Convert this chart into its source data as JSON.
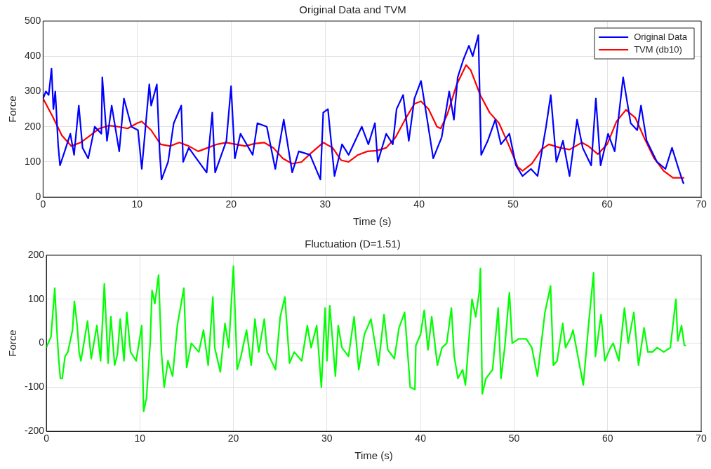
{
  "chart_data": [
    {
      "type": "line",
      "title": "Original Data and TVM",
      "xlabel": "Time (s)",
      "ylabel": "Force",
      "xlim": [
        0,
        70
      ],
      "xticks": [
        0,
        10,
        20,
        30,
        40,
        50,
        60,
        70
      ],
      "ylim": [
        0,
        500
      ],
      "yticks": [
        0,
        100,
        200,
        300,
        400,
        500
      ],
      "grid": true,
      "legend": "top right",
      "marker": "none",
      "line_style": "solid",
      "series": [
        {
          "name": "Original Data",
          "color": "#0000ff",
          "x": [
            0,
            0.3,
            0.6,
            0.9,
            1.1,
            1.3,
            1.6,
            1.8,
            2.3,
            2.9,
            3.3,
            3.8,
            4.2,
            4.8,
            5.5,
            6.2,
            6.3,
            6.8,
            7.3,
            8.1,
            8.6,
            9.4,
            10.1,
            10.5,
            11.3,
            11.5,
            12.1,
            12.4,
            12.6,
            13.3,
            13.9,
            14.7,
            14.9,
            15.5,
            16.3,
            17.4,
            18,
            18.3,
            19.5,
            20,
            20.4,
            21,
            22.3,
            22.8,
            23.8,
            24.7,
            25.6,
            26.5,
            27.2,
            28.4,
            29.5,
            29.8,
            30.3,
            31,
            31.8,
            32.5,
            33.9,
            34.6,
            35.3,
            35.6,
            36.5,
            37.2,
            37.6,
            38.3,
            38.9,
            39.5,
            40.2,
            40.8,
            41.5,
            42.4,
            43.2,
            43.7,
            44.1,
            44.7,
            45.3,
            45.7,
            46.3,
            46.6,
            47.3,
            48.1,
            48.7,
            49.6,
            50.3,
            51,
            51.9,
            52.6,
            53.5,
            54,
            54.6,
            55.3,
            56,
            56.8,
            57.4,
            58.3,
            58.8,
            59.3,
            60.1,
            60.8,
            61.7,
            62.5,
            63.2,
            63.6,
            64.2,
            65.3,
            66.2,
            66.9,
            67.6,
            68.1,
            68.2
          ],
          "values": [
            280,
            300,
            290,
            365,
            250,
            300,
            150,
            90,
            130,
            180,
            120,
            260,
            140,
            110,
            200,
            180,
            340,
            160,
            260,
            130,
            280,
            200,
            190,
            80,
            320,
            260,
            320,
            130,
            50,
            100,
            210,
            260,
            100,
            140,
            110,
            70,
            240,
            70,
            160,
            315,
            110,
            180,
            120,
            210,
            200,
            80,
            220,
            70,
            130,
            120,
            50,
            240,
            250,
            60,
            150,
            120,
            200,
            150,
            210,
            100,
            180,
            150,
            250,
            290,
            160,
            280,
            330,
            230,
            110,
            170,
            300,
            220,
            340,
            390,
            430,
            400,
            460,
            120,
            160,
            220,
            150,
            180,
            90,
            60,
            80,
            60,
            200,
            290,
            100,
            160,
            60,
            220,
            140,
            90,
            280,
            90,
            180,
            130,
            340,
            210,
            190,
            260,
            160,
            100,
            80,
            140,
            80,
            40,
            40
          ]
        },
        {
          "name": "TVM (db10)",
          "color": "#ff0000",
          "x": [
            0,
            1,
            2,
            3,
            4,
            5,
            6,
            7,
            8,
            9,
            10,
            10.5,
            11.5,
            12.5,
            13.5,
            14.5,
            15.5,
            16.5,
            17.5,
            18.5,
            19.5,
            20.5,
            21.5,
            22.5,
            23.5,
            24.5,
            25.5,
            26.5,
            27.5,
            28.5,
            29.8,
            30.8,
            31.7,
            32.5,
            33.5,
            34.5,
            35.5,
            36.5,
            37.5,
            38.5,
            39.5,
            40.2,
            41,
            41.9,
            42.3,
            43,
            44,
            45,
            45.5,
            46.5,
            47.5,
            48.5,
            49.5,
            50.5,
            51,
            52,
            53,
            53.8,
            55,
            56,
            57.3,
            58,
            59,
            60,
            61,
            62,
            63,
            64,
            65,
            66,
            67,
            68.2
          ],
          "values": [
            280,
            230,
            175,
            145,
            155,
            175,
            195,
            203,
            200,
            195,
            210,
            215,
            190,
            150,
            145,
            155,
            145,
            130,
            140,
            150,
            155,
            150,
            145,
            152,
            155,
            140,
            110,
            95,
            100,
            125,
            155,
            140,
            105,
            100,
            120,
            130,
            132,
            140,
            170,
            220,
            265,
            272,
            250,
            200,
            195,
            235,
            320,
            375,
            360,
            290,
            240,
            210,
            150,
            85,
            75,
            95,
            135,
            150,
            140,
            135,
            155,
            145,
            122,
            150,
            215,
            248,
            225,
            165,
            110,
            75,
            55,
            55
          ]
        }
      ]
    },
    {
      "type": "line",
      "title": "Fluctuation (D=1.51)",
      "xlabel": "Time (s)",
      "ylabel": "Force",
      "xlim": [
        0,
        70
      ],
      "xticks": [
        0,
        10,
        20,
        30,
        40,
        50,
        60,
        70
      ],
      "ylim": [
        -200,
        200
      ],
      "yticks": [
        -200,
        -100,
        0,
        100,
        200
      ],
      "grid": true,
      "marker": "none",
      "line_style": "solid",
      "series": [
        {
          "color": "#00ff00",
          "x": [
            0,
            0.5,
            0.9,
            1.1,
            1.3,
            1.5,
            1.7,
            2.0,
            2.3,
            2.8,
            3.0,
            3.3,
            3.5,
            3.7,
            4.4,
            4.8,
            5.4,
            5.8,
            6.2,
            6.6,
            6.9,
            7.3,
            7.6,
            7.9,
            8.3,
            8.6,
            9.0,
            9.6,
            10.2,
            10.4,
            10.7,
            11.1,
            11.3,
            11.6,
            12.0,
            12.3,
            12.6,
            13.0,
            13.5,
            14.0,
            14.7,
            15.0,
            15.5,
            16.3,
            16.8,
            17.3,
            17.8,
            18.0,
            18.6,
            19.1,
            19.5,
            20.0,
            20.4,
            20.8,
            21.4,
            21.9,
            22.3,
            22.7,
            23.3,
            23.6,
            24.5,
            25.0,
            25.5,
            26.0,
            26.5,
            27.3,
            27.9,
            28.3,
            28.9,
            29.4,
            29.8,
            30.0,
            30.3,
            30.9,
            31.2,
            31.6,
            32.3,
            32.9,
            33.4,
            34.0,
            34.7,
            35.2,
            35.5,
            36.1,
            36.5,
            37.2,
            37.7,
            38.3,
            38.9,
            39.4,
            39.5,
            40.0,
            40.4,
            40.8,
            41.2,
            41.8,
            42.3,
            42.8,
            43.3,
            43.6,
            44.0,
            44.5,
            44.8,
            45.5,
            45.9,
            46.3,
            46.4,
            46.6,
            47.0,
            47.7,
            48.3,
            48.6,
            49.0,
            49.5,
            49.8,
            50.5,
            51.3,
            51.9,
            52.5,
            53.3,
            53.9,
            54.2,
            54.6,
            55.2,
            55.5,
            56.0,
            56.3,
            57.4,
            58.0,
            58.5,
            58.7,
            59.3,
            59.7,
            60.3,
            60.6,
            61.2,
            61.8,
            62.2,
            62.8,
            63.3,
            63.9,
            64.3,
            64.8,
            65.3,
            66.0,
            66.7,
            67.3,
            67.5,
            67.9,
            68.2,
            68.4
          ],
          "values": [
            -10,
            15,
            125,
            40,
            -30,
            -80,
            -80,
            -30,
            -20,
            30,
            95,
            40,
            -20,
            -40,
            50,
            -35,
            40,
            -40,
            135,
            -45,
            60,
            -50,
            -25,
            55,
            -40,
            70,
            -20,
            -40,
            40,
            -155,
            -125,
            0,
            120,
            90,
            155,
            -20,
            -100,
            -40,
            -75,
            40,
            125,
            -55,
            0,
            -20,
            30,
            -50,
            105,
            -10,
            -65,
            45,
            -10,
            175,
            -60,
            -30,
            30,
            -50,
            55,
            -20,
            55,
            -20,
            -60,
            60,
            105,
            -45,
            -20,
            -40,
            40,
            -10,
            40,
            -100,
            80,
            -40,
            85,
            -75,
            40,
            -10,
            -30,
            60,
            -60,
            20,
            55,
            -10,
            -50,
            65,
            -15,
            -35,
            35,
            70,
            -100,
            -105,
            -5,
            20,
            75,
            -15,
            60,
            -50,
            -10,
            0,
            80,
            -30,
            -80,
            -60,
            -95,
            100,
            60,
            120,
            170,
            -115,
            -80,
            -60,
            80,
            -80,
            -10,
            115,
            0,
            10,
            10,
            -10,
            -75,
            70,
            130,
            -50,
            -40,
            45,
            -10,
            10,
            30,
            -95,
            50,
            160,
            -30,
            65,
            -40,
            -10,
            0,
            -40,
            80,
            0,
            70,
            -50,
            35,
            -20,
            -20,
            -10,
            -20,
            -10,
            100,
            5,
            40,
            -5,
            -5
          ]
        }
      ]
    }
  ]
}
